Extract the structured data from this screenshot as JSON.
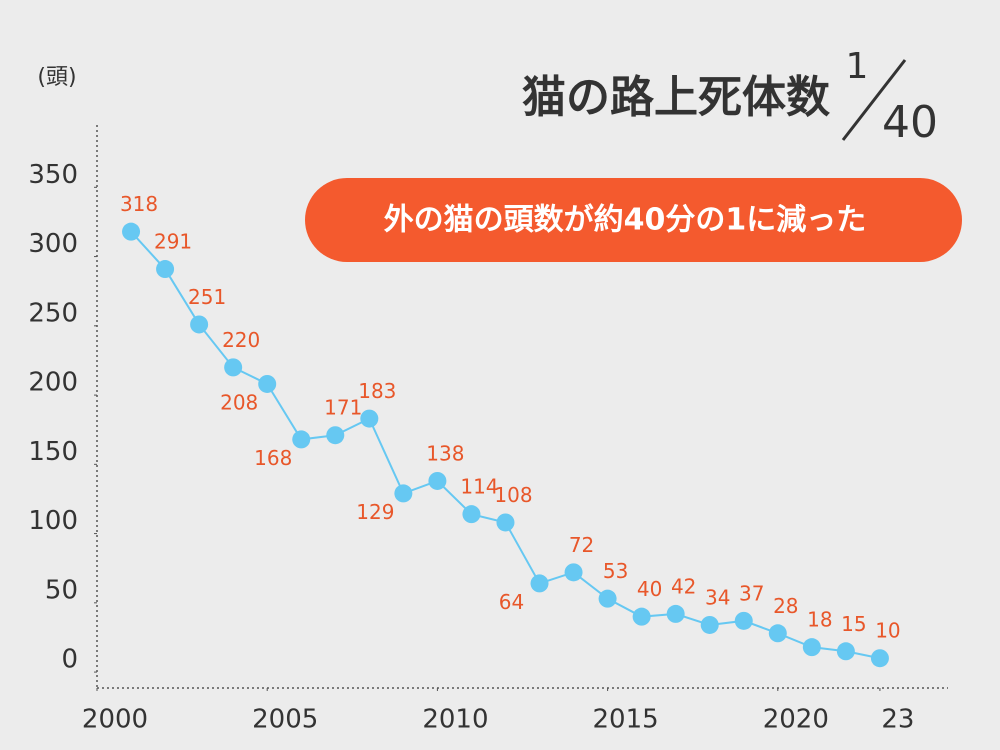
{
  "chart_data": {
    "type": "line",
    "title": "猫の路上死体数",
    "fraction": {
      "numerator": "1",
      "denominator": "40"
    },
    "badge": "外の猫の頭数が約40分の1に減った",
    "y_axis_label": "(頭)",
    "x": [
      2001,
      2002,
      2003,
      2004,
      2005,
      2006,
      2007,
      2008,
      2009,
      2010,
      2011,
      2012,
      2013,
      2014,
      2015,
      2016,
      2017,
      2018,
      2019,
      2020,
      2021,
      2022,
      2023
    ],
    "series": [
      {
        "name": "猫の路上死体数",
        "color": "#66c8f2",
        "values": [
          318,
          291,
          251,
          220,
          208,
          168,
          171,
          183,
          129,
          138,
          114,
          108,
          64,
          72,
          53,
          40,
          42,
          34,
          37,
          28,
          18,
          15,
          10
        ]
      }
    ],
    "xlim": [
      2000,
      2025
    ],
    "xticks": [
      2000,
      2005,
      2010,
      2015,
      2020,
      {
        "value": 2023,
        "label": "23"
      }
    ],
    "ylim": [
      -11.5,
      395
    ],
    "yticks": [
      0,
      50,
      100,
      150,
      200,
      250,
      300,
      350
    ],
    "label_color": "#e8572a",
    "badge_color": "#f45a2e"
  }
}
